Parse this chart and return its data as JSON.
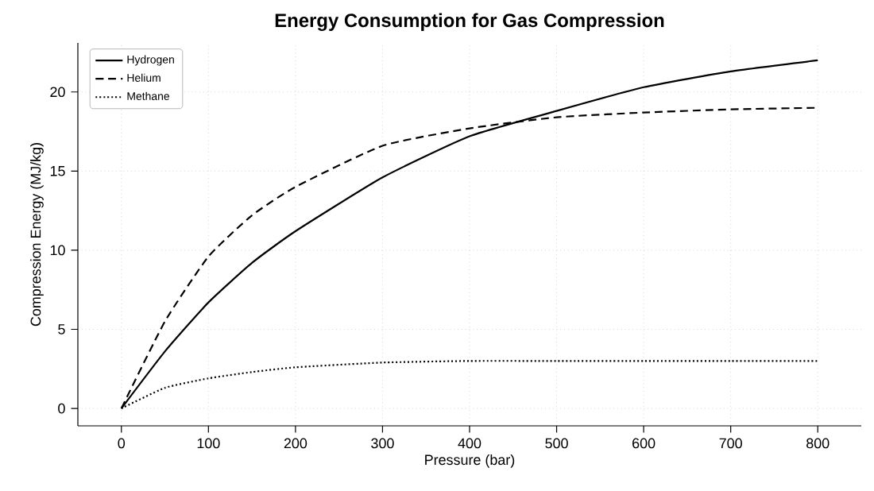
{
  "chart_data": {
    "type": "line",
    "title": "Energy Consumption for Gas Compression",
    "xlabel": "Pressure (bar)",
    "ylabel": "Compression Energy (MJ/kg)",
    "x": [
      0,
      50,
      100,
      150,
      200,
      300,
      400,
      500,
      600,
      700,
      800
    ],
    "series": [
      {
        "name": "Hydrogen",
        "color": "#000000",
        "line_style": "solid",
        "values": [
          0,
          3.6,
          6.7,
          9.2,
          11.2,
          14.6,
          17.2,
          18.8,
          20.3,
          21.3,
          22.0
        ]
      },
      {
        "name": "Helium",
        "color": "#000000",
        "line_style": "dashed",
        "values": [
          0,
          5.5,
          9.6,
          12.2,
          14.0,
          16.6,
          17.7,
          18.4,
          18.7,
          18.9,
          19.0
        ]
      },
      {
        "name": "Methane",
        "color": "#000000",
        "line_style": "dotted",
        "values": [
          0,
          1.3,
          1.9,
          2.3,
          2.6,
          2.9,
          3.0,
          3.0,
          3.0,
          3.0,
          3.0
        ]
      }
    ],
    "xlim": [
      -50,
      850
    ],
    "ylim": [
      -1.1,
      23.1
    ],
    "xticks": [
      0,
      100,
      200,
      300,
      400,
      500,
      600,
      700,
      800
    ],
    "yticks": [
      0,
      5,
      10,
      15,
      20
    ],
    "grid": true,
    "legend": "top left",
    "marker": "none"
  }
}
